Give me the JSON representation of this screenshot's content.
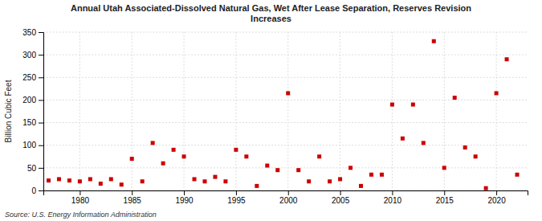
{
  "chart_data": {
    "type": "scatter",
    "title": "Annual Utah Associated-Dissolved Natural Gas, Wet After Lease Separation, Reserves Revision\nIncreases",
    "y_label": "Billion Cubic Feet",
    "annotations": [
      "Source: U.S. Energy Information Administration"
    ],
    "x": [
      1977,
      1978,
      1979,
      1980,
      1981,
      1982,
      1983,
      1984,
      1985,
      1986,
      1987,
      1988,
      1989,
      1990,
      1991,
      1992,
      1993,
      1994,
      1995,
      1996,
      1997,
      1998,
      1999,
      2000,
      2001,
      2002,
      2003,
      2004,
      2005,
      2006,
      2007,
      2008,
      2009,
      2010,
      2011,
      2012,
      2013,
      2014,
      2015,
      2016,
      2017,
      2018,
      2019,
      2020,
      2021,
      2022
    ],
    "values": [
      22,
      25,
      22,
      20,
      25,
      15,
      25,
      13,
      70,
      20,
      105,
      60,
      90,
      75,
      25,
      20,
      30,
      20,
      90,
      75,
      10,
      55,
      45,
      215,
      45,
      20,
      75,
      20,
      25,
      50,
      10,
      35,
      35,
      190,
      115,
      190,
      105,
      330,
      50,
      205,
      95,
      75,
      5,
      215,
      290,
      35
    ],
    "color": "#cc0000",
    "marker": "square",
    "xlim": [
      1976.5,
      2023
    ],
    "xticks": [
      1980,
      1985,
      1990,
      1995,
      2000,
      2005,
      2010,
      2015,
      2020
    ],
    "ylim": [
      0,
      350
    ],
    "yticks": [
      0,
      50,
      100,
      150,
      200,
      250,
      300,
      350
    ],
    "grid": true
  }
}
